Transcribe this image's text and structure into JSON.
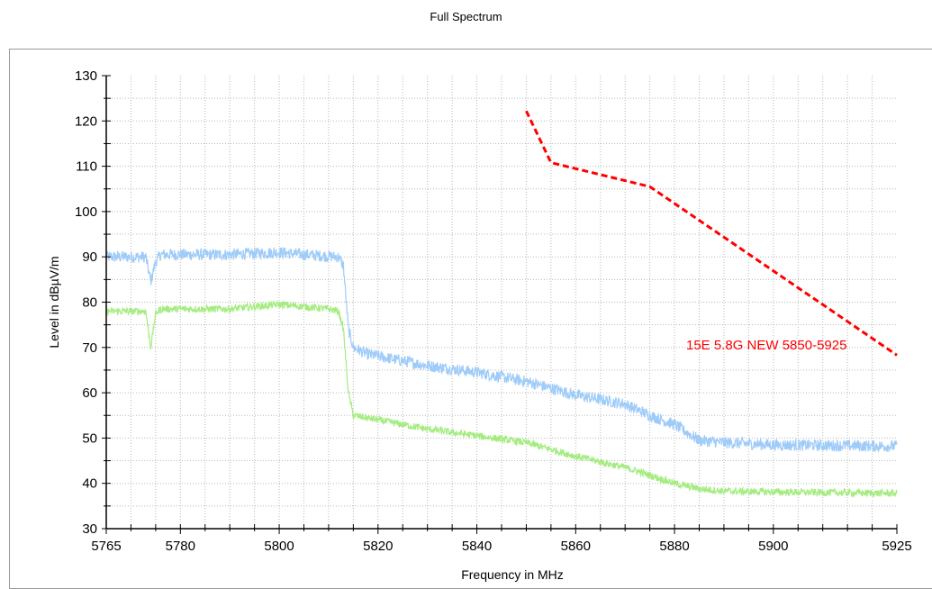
{
  "chart_data": {
    "type": "line",
    "title": "Full Spectrum",
    "xlabel": "Frequency in MHz",
    "ylabel": "Level in dBµV/m",
    "xlim": [
      5765,
      5925
    ],
    "ylim": [
      30,
      130
    ],
    "xticks": [
      5765,
      5780,
      5800,
      5820,
      5840,
      5860,
      5880,
      5900,
      5925
    ],
    "yticks": [
      30,
      40,
      50,
      60,
      70,
      80,
      90,
      100,
      110,
      120,
      130
    ],
    "grid": true,
    "colors": {
      "series_blue": "#9ecbf8",
      "series_green": "#a4ec80",
      "limit": "#ff0000",
      "grid": "#b8b8b8"
    },
    "series": [
      {
        "color": "#9ecbf8",
        "noise": 1.3,
        "x": [
          5765,
          5773,
          5774,
          5775,
          5776,
          5790,
          5800,
          5805,
          5812,
          5813,
          5814,
          5815,
          5818,
          5830,
          5840,
          5850,
          5860,
          5870,
          5873,
          5875,
          5880,
          5885,
          5890,
          5900,
          5925
        ],
        "y": [
          90,
          90,
          84.5,
          89,
          90.5,
          90.5,
          91,
          90.5,
          90,
          88,
          74,
          70,
          68.5,
          66,
          64.5,
          62.5,
          59.5,
          57.5,
          56,
          55,
          53,
          49.5,
          49,
          48.5,
          48.2
        ]
      },
      {
        "color": "#a4ec80",
        "noise": 0.8,
        "x": [
          5765,
          5773,
          5774,
          5775,
          5776,
          5790,
          5800,
          5810,
          5812,
          5813,
          5814,
          5815,
          5820,
          5830,
          5840,
          5850,
          5860,
          5870,
          5873,
          5880,
          5885,
          5890,
          5900,
          5925
        ],
        "y": [
          78,
          78,
          70,
          77.5,
          78.5,
          78.5,
          79.5,
          78.5,
          78,
          74,
          60,
          55,
          54,
          52,
          50.5,
          49,
          46,
          43.5,
          42.5,
          40,
          38.8,
          38.3,
          38.1,
          37.8
        ]
      }
    ],
    "limit_line": {
      "label": "15E 5.8G NEW 5850-5925",
      "color": "#ff0000",
      "style": "dashed",
      "x": [
        5850,
        5855,
        5875,
        5925
      ],
      "y": [
        122.2,
        110.8,
        105.5,
        68.3
      ]
    }
  }
}
